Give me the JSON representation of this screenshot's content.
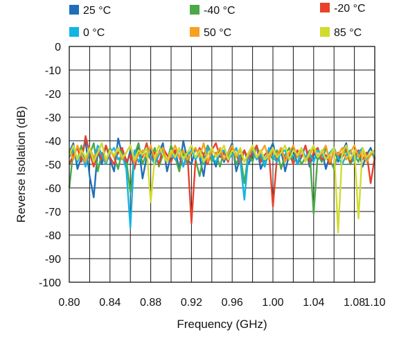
{
  "chart_data": {
    "type": "line",
    "title": "",
    "xlabel": "Frequency (GHz)",
    "ylabel": "Reverse Isolation (dB)",
    "xlim": [
      0.8,
      1.1
    ],
    "ylim": [
      -100,
      0
    ],
    "grid": true,
    "legend_position": "top",
    "x_ticks": [
      "0.80",
      "0.84",
      "0.88",
      "0.92",
      "0.96",
      "1.00",
      "1.04",
      "1.08",
      "1.10"
    ],
    "y_ticks": [
      "0",
      "-10",
      "-20",
      "-30",
      "-40",
      "-50",
      "-60",
      "-70",
      "-80",
      "-90",
      "-100"
    ],
    "x": [
      0.8,
      0.804,
      0.808,
      0.812,
      0.816,
      0.82,
      0.824,
      0.828,
      0.832,
      0.836,
      0.84,
      0.844,
      0.848,
      0.852,
      0.856,
      0.86,
      0.864,
      0.868,
      0.872,
      0.876,
      0.88,
      0.884,
      0.888,
      0.892,
      0.896,
      0.9,
      0.904,
      0.908,
      0.912,
      0.916,
      0.92,
      0.924,
      0.928,
      0.932,
      0.936,
      0.94,
      0.944,
      0.948,
      0.952,
      0.956,
      0.96,
      0.964,
      0.968,
      0.972,
      0.976,
      0.98,
      0.984,
      0.988,
      0.992,
      0.996,
      1.0,
      1.004,
      1.008,
      1.012,
      1.016,
      1.02,
      1.024,
      1.028,
      1.032,
      1.036,
      1.04,
      1.044,
      1.048,
      1.052,
      1.056,
      1.06,
      1.064,
      1.068,
      1.072,
      1.076,
      1.08,
      1.084,
      1.088,
      1.092,
      1.096,
      1.1
    ],
    "series": [
      {
        "name": "25 °C",
        "color": "#1f6fb8",
        "values": [
          -45,
          -41,
          -52,
          -47,
          -40,
          -55,
          -64,
          -44,
          -50,
          -42,
          -48,
          -53,
          -39,
          -46,
          -51,
          -44,
          -49,
          -42,
          -56,
          -47,
          -43,
          -50,
          -45,
          -41,
          -53,
          -46,
          -44,
          -52,
          -40,
          -48,
          -50,
          -43,
          -47,
          -55,
          -42,
          -46,
          -51,
          -44,
          -49,
          -45,
          -41,
          -53,
          -47,
          -44,
          -50,
          -46,
          -42,
          -52,
          -48,
          -45,
          -41,
          -49,
          -44,
          -53,
          -46,
          -43,
          -50,
          -47,
          -42,
          -51,
          -45,
          -48,
          -44,
          -52,
          -46,
          -43,
          -49,
          -45,
          -41,
          -50,
          -47,
          -44,
          -51,
          -46,
          -43,
          -48
        ]
      },
      {
        "name": "-40 °C",
        "color": "#4aaa48",
        "values": [
          -60,
          -44,
          -48,
          -42,
          -50,
          -46,
          -41,
          -53,
          -45,
          -49,
          -43,
          -47,
          -52,
          -44,
          -48,
          -62,
          -46,
          -41,
          -50,
          -45,
          -48,
          -43,
          -51,
          -46,
          -49,
          -42,
          -47,
          -53,
          -45,
          -50,
          -44,
          -48,
          -55,
          -46,
          -42,
          -49,
          -45,
          -51,
          -44,
          -47,
          -43,
          -50,
          -46,
          -58,
          -45,
          -49,
          -42,
          -47,
          -51,
          -45,
          -48,
          -44,
          -52,
          -46,
          -43,
          -49,
          -45,
          -50,
          -47,
          -44,
          -71,
          -46,
          -49,
          -43,
          -48,
          -52,
          -45,
          -47,
          -44,
          -50,
          -46,
          -49,
          -43,
          -48,
          -45,
          -47
        ]
      },
      {
        "name": "-20 °C",
        "color": "#e8412c",
        "values": [
          -50,
          -46,
          -43,
          -49,
          -38,
          -45,
          -51,
          -44,
          -48,
          -42,
          -47,
          -50,
          -45,
          -43,
          -49,
          -46,
          -52,
          -44,
          -47,
          -41,
          -48,
          -45,
          -50,
          -43,
          -46,
          -49,
          -44,
          -47,
          -51,
          -45,
          -75,
          -48,
          -43,
          -46,
          -50,
          -44,
          -41,
          -47,
          -45,
          -49,
          -43,
          -46,
          -50,
          -44,
          -48,
          -45,
          -42,
          -49,
          -46,
          -44,
          -68,
          -47,
          -43,
          -48,
          -45,
          -50,
          -44,
          -47,
          -42,
          -49,
          -45,
          -43,
          -48,
          -46,
          -50,
          -44,
          -47,
          -45,
          -43,
          -49,
          -46,
          -44,
          -48,
          -45,
          -58,
          -47
        ]
      },
      {
        "name": "0 °C",
        "color": "#12b4e6",
        "values": [
          -47,
          -43,
          -49,
          -45,
          -51,
          -44,
          -48,
          -42,
          -46,
          -50,
          -45,
          -43,
          -48,
          -46,
          -52,
          -77,
          -44,
          -49,
          -45,
          -43,
          -47,
          -50,
          -46,
          -44,
          -49,
          -45,
          -48,
          -43,
          -51,
          -46,
          -44,
          -48,
          -45,
          -50,
          -43,
          -47,
          -49,
          -45,
          -44,
          -48,
          -46,
          -43,
          -49,
          -65,
          -46,
          -44,
          -48,
          -45,
          -51,
          -43,
          -47,
          -49,
          -45,
          -44,
          -48,
          -46,
          -50,
          -43,
          -47,
          -45,
          -49,
          -44,
          -46,
          -48,
          -45,
          -43,
          -47,
          -50,
          -46,
          -44,
          -49,
          -45,
          -43,
          -48,
          -46,
          -44
        ]
      },
      {
        "name": "50 °C",
        "color": "#f6a11f",
        "values": [
          -44,
          -48,
          -42,
          -46,
          -49,
          -43,
          -47,
          -45,
          -41,
          -49,
          -44,
          -47,
          -43,
          -48,
          -45,
          -42,
          -49,
          -46,
          -44,
          -47,
          -42,
          -48,
          -45,
          -43,
          -49,
          -46,
          -42,
          -47,
          -44,
          -48,
          -45,
          -43,
          -47,
          -41,
          -49,
          -44,
          -46,
          -43,
          -48,
          -45,
          -42,
          -47,
          -44,
          -49,
          -46,
          -43,
          -47,
          -45,
          -42,
          -48,
          -44,
          -46,
          -43,
          -49,
          -45,
          -42,
          -47,
          -44,
          -48,
          -46,
          -43,
          -47,
          -45,
          -42,
          -49,
          -44,
          -46,
          -43,
          -48,
          -45,
          -42,
          -47,
          -44,
          -49,
          -46,
          -44
        ]
      },
      {
        "name": "85 °C",
        "color": "#cfdc2e",
        "values": [
          -46,
          -42,
          -48,
          -44,
          -47,
          -43,
          -49,
          -45,
          -41,
          -48,
          -44,
          -46,
          -43,
          -47,
          -45,
          -42,
          -48,
          -44,
          -46,
          -43,
          -66,
          -47,
          -42,
          -46,
          -49,
          -44,
          -47,
          -43,
          -48,
          -45,
          -42,
          -47,
          -44,
          -49,
          -46,
          -43,
          -47,
          -45,
          -42,
          -48,
          -44,
          -46,
          -43,
          -49,
          -45,
          -42,
          -47,
          -44,
          -48,
          -46,
          -43,
          -47,
          -45,
          -42,
          -48,
          -44,
          -46,
          -43,
          -49,
          -45,
          -42,
          -47,
          -44,
          -48,
          -46,
          -43,
          -79,
          -45,
          -42,
          -48,
          -44,
          -73,
          -43,
          -47,
          -45,
          -44
        ]
      }
    ]
  }
}
